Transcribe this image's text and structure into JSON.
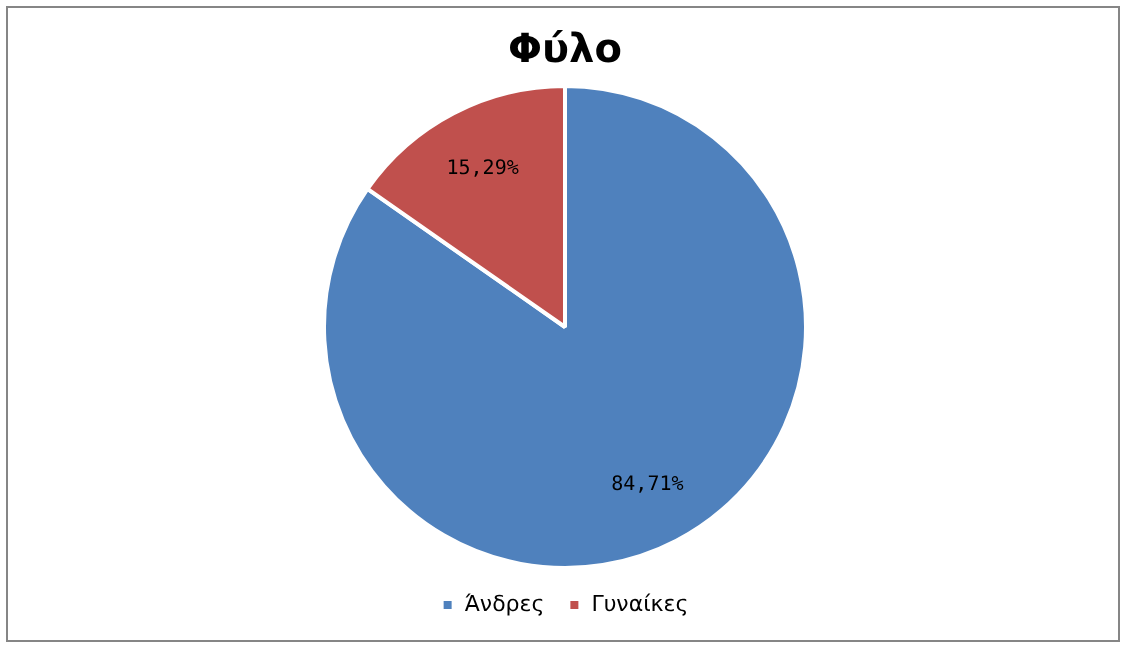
{
  "chart_data": {
    "type": "pie",
    "title": "Φύλο",
    "categories": [
      "Άνδρες",
      "Γυναίκες"
    ],
    "values": [
      84.71,
      15.29
    ],
    "colors": [
      "#4f81bd",
      "#c0504d"
    ],
    "value_labels": [
      "84,71%",
      "15,29%"
    ],
    "legend": "bottom"
  }
}
